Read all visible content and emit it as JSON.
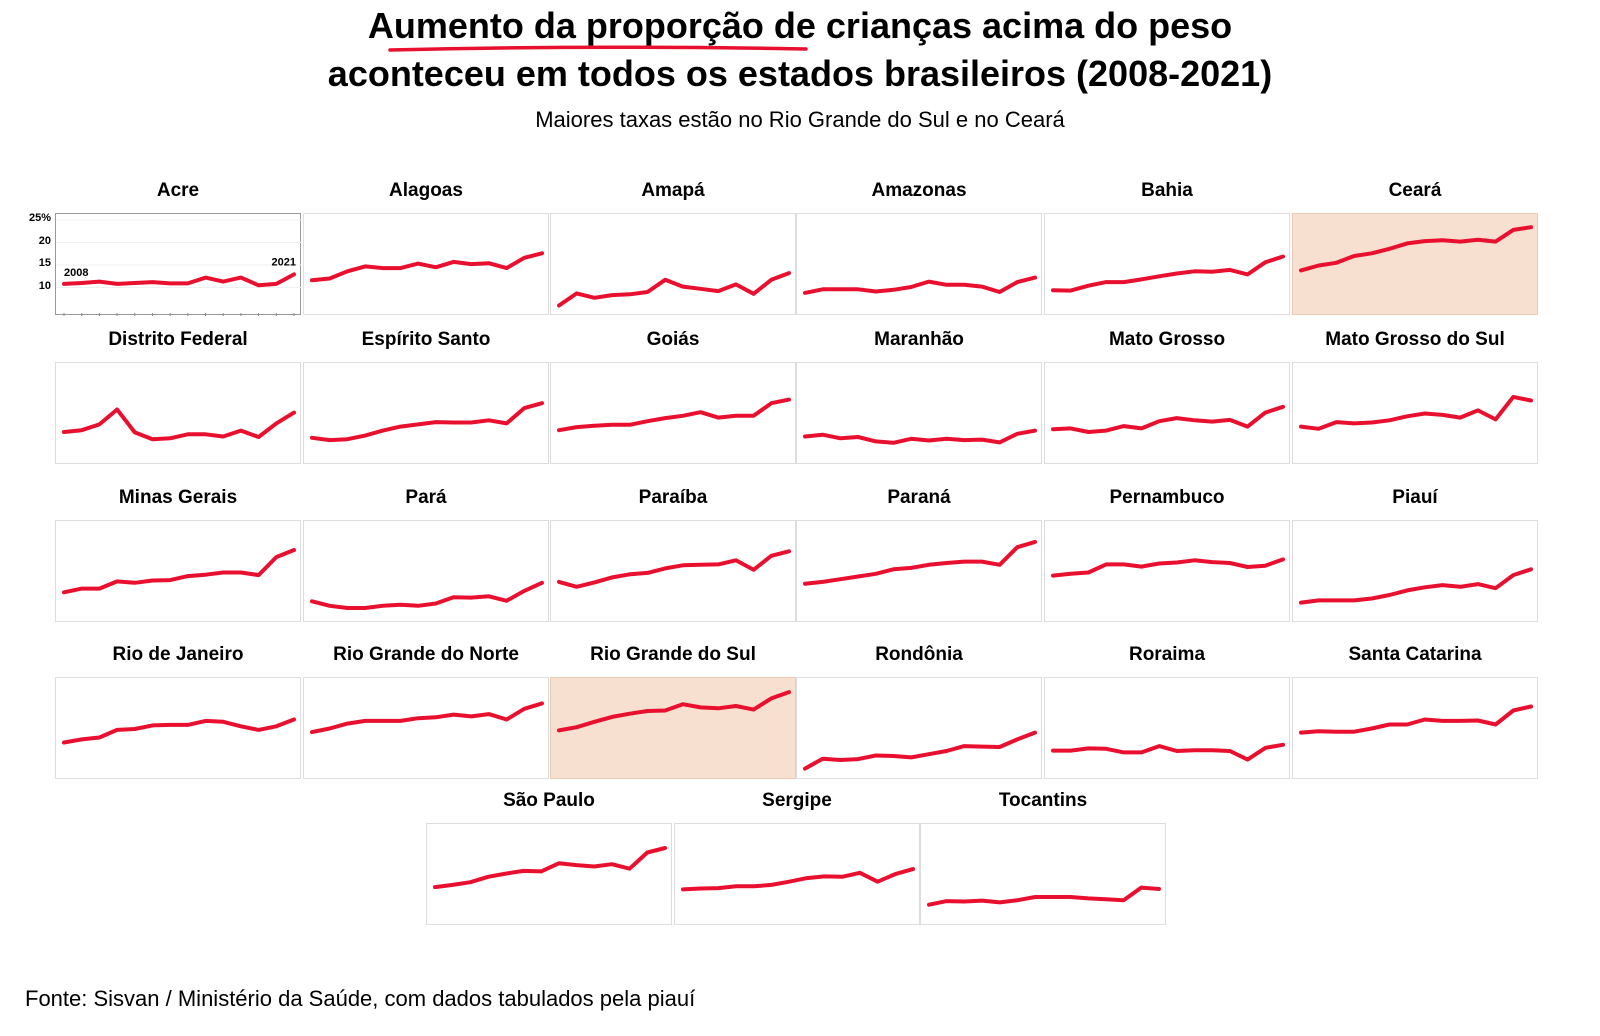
{
  "title_line1": "Aumento da proporção de crianças acima do peso",
  "title_line2": "aconteceu em todos os estados brasileiros (2008-2021)",
  "subtitle": "Maiores taxas estão no Rio Grande do Sul e no Ceará",
  "source": "Fonte: Sisvan / Ministério da Saúde, com dados tabulados pela piauí",
  "colors": {
    "line": "#e8102e",
    "highlight": "#f8e0d1",
    "underline": "#e8102e"
  },
  "chart_data": {
    "type": "line",
    "x": [
      2008,
      2009,
      2010,
      2011,
      2012,
      2013,
      2014,
      2015,
      2016,
      2017,
      2018,
      2019,
      2020,
      2021
    ],
    "ylim": [
      5,
      25
    ],
    "yticks": [
      "25%",
      "20",
      "15",
      "10"
    ],
    "start_label": "2008",
    "end_label": "2021",
    "highlighted": [
      "Ceará",
      "Rio Grande do Sul"
    ],
    "panels": [
      {
        "name": "Acre",
        "values": [
          10.8,
          11.0,
          11.3,
          10.8,
          11.0,
          11.2,
          10.9,
          10.9,
          12.2,
          11.3,
          12.2,
          10.5,
          10.8,
          12.9
        ]
      },
      {
        "name": "Alagoas",
        "values": [
          11.6,
          12.0,
          13.6,
          14.7,
          14.3,
          14.3,
          15.3,
          14.5,
          15.7,
          15.2,
          15.4,
          14.3,
          16.6,
          17.6
        ]
      },
      {
        "name": "Amapá",
        "values": [
          6.0,
          8.7,
          7.7,
          8.3,
          8.5,
          9.0,
          11.7,
          10.2,
          9.7,
          9.2,
          10.7,
          8.6,
          11.7,
          13.2
        ]
      },
      {
        "name": "Amazonas",
        "values": [
          8.8,
          9.6,
          9.6,
          9.6,
          9.1,
          9.5,
          10.1,
          11.3,
          10.6,
          10.6,
          10.2,
          9.0,
          11.2,
          12.2
        ]
      },
      {
        "name": "Bahia",
        "values": [
          9.4,
          9.3,
          10.4,
          11.2,
          11.2,
          11.8,
          12.5,
          13.1,
          13.6,
          13.5,
          13.9,
          12.9,
          15.6,
          16.9
        ]
      },
      {
        "name": "Ceará",
        "values": [
          13.8,
          14.9,
          15.5,
          17.0,
          17.6,
          18.6,
          19.8,
          20.3,
          20.5,
          20.2,
          20.6,
          20.2,
          22.8,
          23.4
        ]
      },
      {
        "name": "Distrito Federal",
        "values": [
          11.0,
          11.4,
          12.7,
          16.0,
          10.9,
          9.4,
          9.6,
          10.5,
          10.5,
          10.0,
          11.3,
          9.9,
          12.9,
          15.3
        ]
      },
      {
        "name": "Espírito Santo",
        "values": [
          9.7,
          9.2,
          9.4,
          10.2,
          11.3,
          12.2,
          12.7,
          13.2,
          13.1,
          13.1,
          13.6,
          12.9,
          16.3,
          17.4
        ]
      },
      {
        "name": "Goiás",
        "values": [
          11.4,
          12.1,
          12.4,
          12.6,
          12.6,
          13.4,
          14.1,
          14.6,
          15.4,
          14.2,
          14.6,
          14.6,
          17.4,
          18.2
        ]
      },
      {
        "name": "Maranhão",
        "values": [
          10.0,
          10.4,
          9.6,
          9.9,
          8.9,
          8.6,
          9.5,
          9.1,
          9.5,
          9.2,
          9.3,
          8.7,
          10.6,
          11.3
        ]
      },
      {
        "name": "Mato Grosso",
        "values": [
          11.6,
          11.8,
          11.0,
          11.3,
          12.3,
          11.8,
          13.4,
          14.1,
          13.6,
          13.3,
          13.7,
          12.2,
          15.3,
          16.6
        ]
      },
      {
        "name": "Mato Grosso do Sul",
        "values": [
          12.2,
          11.7,
          13.2,
          12.9,
          13.1,
          13.6,
          14.5,
          15.1,
          14.8,
          14.2,
          15.8,
          13.8,
          18.8,
          18.0
        ]
      },
      {
        "name": "Minas Gerais",
        "values": [
          10.5,
          11.3,
          11.3,
          12.9,
          12.6,
          13.1,
          13.2,
          14.1,
          14.4,
          14.9,
          14.9,
          14.3,
          18.3,
          19.9
        ]
      },
      {
        "name": "Pará",
        "values": [
          8.5,
          7.5,
          7.0,
          7.0,
          7.5,
          7.7,
          7.5,
          8.0,
          9.4,
          9.3,
          9.6,
          8.6,
          10.8,
          12.6
        ]
      },
      {
        "name": "Paraíba",
        "values": [
          12.8,
          11.7,
          12.7,
          13.8,
          14.5,
          14.8,
          15.8,
          16.5,
          16.6,
          16.7,
          17.6,
          15.5,
          18.6,
          19.6
        ]
      },
      {
        "name": "Paraná",
        "values": [
          12.4,
          12.8,
          13.4,
          14.0,
          14.6,
          15.6,
          15.9,
          16.6,
          17.0,
          17.3,
          17.3,
          16.6,
          20.5,
          21.7
        ]
      },
      {
        "name": "Pernambuco",
        "values": [
          14.2,
          14.6,
          14.9,
          16.7,
          16.7,
          16.2,
          16.9,
          17.1,
          17.6,
          17.2,
          17.0,
          16.1,
          16.4,
          17.8
        ]
      },
      {
        "name": "Piauí",
        "values": [
          8.2,
          8.7,
          8.7,
          8.7,
          9.1,
          9.9,
          10.9,
          11.6,
          12.1,
          11.7,
          12.3,
          11.4,
          14.3,
          15.6
        ]
      },
      {
        "name": "Rio de Janeiro",
        "values": [
          12.0,
          12.7,
          13.1,
          14.8,
          15.0,
          15.8,
          15.9,
          15.9,
          16.8,
          16.6,
          15.6,
          14.8,
          15.6,
          17.1
        ]
      },
      {
        "name": "Rio Grande do Norte",
        "values": [
          14.3,
          15.1,
          16.2,
          16.8,
          16.8,
          16.8,
          17.4,
          17.6,
          18.2,
          17.8,
          18.3,
          17.1,
          19.5,
          20.7
        ]
      },
      {
        "name": "Rio Grande do Sul",
        "values": [
          14.7,
          15.4,
          16.6,
          17.7,
          18.4,
          19.0,
          19.1,
          20.5,
          19.8,
          19.6,
          20.1,
          19.3,
          21.8,
          23.2
        ]
      },
      {
        "name": "Rondônia",
        "values": [
          6.2,
          8.4,
          8.1,
          8.3,
          9.1,
          9.0,
          8.7,
          9.4,
          10.1,
          11.2,
          11.1,
          11.0,
          12.7,
          14.2
        ]
      },
      {
        "name": "Roraima",
        "values": [
          10.2,
          10.2,
          10.7,
          10.6,
          9.8,
          9.8,
          11.2,
          10.1,
          10.3,
          10.3,
          10.1,
          8.2,
          10.8,
          11.5
        ]
      },
      {
        "name": "Santa Catarina",
        "values": [
          14.2,
          14.5,
          14.4,
          14.4,
          15.1,
          16.0,
          16.0,
          17.1,
          16.8,
          16.8,
          16.9,
          16.0,
          19.1,
          20.0
        ]
      },
      {
        "name": "São Paulo",
        "values": [
          12.3,
          12.8,
          13.4,
          14.6,
          15.3,
          15.9,
          15.8,
          17.6,
          17.2,
          16.9,
          17.4,
          16.4,
          20.0,
          21.0
        ]
      },
      {
        "name": "Sergipe",
        "values": [
          11.8,
          12.0,
          12.1,
          12.5,
          12.5,
          12.8,
          13.5,
          14.3,
          14.7,
          14.6,
          15.5,
          13.5,
          15.2,
          16.3
        ]
      },
      {
        "name": "Tocantins",
        "values": [
          8.4,
          9.2,
          9.1,
          9.3,
          8.9,
          9.4,
          10.1,
          10.1,
          10.1,
          9.8,
          9.6,
          9.4,
          12.2,
          11.9
        ]
      }
    ]
  }
}
